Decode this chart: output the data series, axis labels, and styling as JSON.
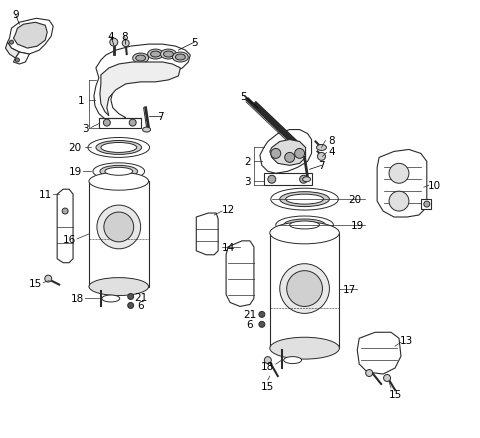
{
  "bg_color": "#ffffff",
  "line_color": "#2a2a2a",
  "label_color": "#000000",
  "fig_width": 4.8,
  "fig_height": 4.39,
  "dpi": 100
}
